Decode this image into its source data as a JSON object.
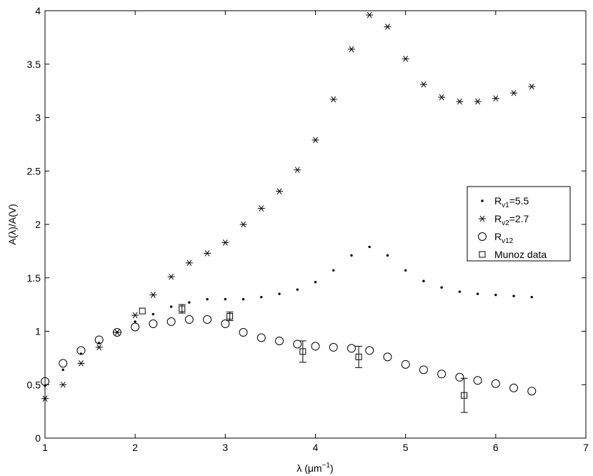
{
  "chart_data": {
    "type": "scatter",
    "title": "",
    "xlabel": "λ (μm",
    "xlabel_sup": "−1",
    "xlabel_close": ")",
    "ylabel": "A(λ)/A(V)",
    "xlim": [
      1,
      7
    ],
    "ylim": [
      0,
      4
    ],
    "xticks": [
      "1",
      "2",
      "3",
      "4",
      "5",
      "6",
      "7"
    ],
    "yticks": [
      "0",
      "0.5",
      "1",
      "1.5",
      "2",
      "2.5",
      "3",
      "3.5",
      "4"
    ],
    "grid": false,
    "legend_position": "right",
    "series": [
      {
        "name": "Rv1=5.5",
        "legend_main": "R",
        "legend_sub": "v1",
        "legend_rest": "=5.5",
        "marker": "dot",
        "x": [
          1.0,
          1.2,
          1.4,
          1.6,
          1.8,
          2.0,
          2.2,
          2.4,
          2.6,
          2.8,
          3.0,
          3.2,
          3.4,
          3.6,
          3.8,
          4.0,
          4.2,
          4.4,
          4.6,
          4.8,
          5.0,
          5.2,
          5.4,
          5.6,
          5.8,
          6.0,
          6.2,
          6.4
        ],
        "y": [
          0.49,
          0.64,
          0.79,
          0.89,
          0.99,
          1.09,
          1.16,
          1.23,
          1.27,
          1.3,
          1.3,
          1.3,
          1.32,
          1.35,
          1.39,
          1.46,
          1.57,
          1.71,
          1.79,
          1.71,
          1.57,
          1.47,
          1.41,
          1.37,
          1.35,
          1.34,
          1.33,
          1.32
        ]
      },
      {
        "name": "Rv2=2.7",
        "legend_main": "R",
        "legend_sub": "v2",
        "legend_rest": "=2.7",
        "marker": "asterisk",
        "x": [
          1.0,
          1.2,
          1.4,
          1.6,
          1.8,
          2.0,
          2.2,
          2.4,
          2.6,
          2.8,
          3.0,
          3.2,
          3.4,
          3.6,
          3.8,
          4.0,
          4.2,
          4.4,
          4.6,
          4.8,
          5.0,
          5.2,
          5.4,
          5.6,
          5.8,
          6.0,
          6.2,
          6.4
        ],
        "y": [
          0.37,
          0.5,
          0.7,
          0.85,
          0.99,
          1.15,
          1.34,
          1.51,
          1.64,
          1.73,
          1.83,
          2.0,
          2.15,
          2.31,
          2.51,
          2.79,
          3.17,
          3.64,
          3.96,
          3.85,
          3.55,
          3.31,
          3.19,
          3.15,
          3.15,
          3.18,
          3.23,
          3.29
        ]
      },
      {
        "name": "Rv12",
        "legend_main": "R",
        "legend_sub": "v12",
        "legend_rest": "",
        "marker": "circle",
        "x": [
          1.0,
          1.2,
          1.4,
          1.6,
          1.8,
          2.0,
          2.2,
          2.4,
          2.6,
          2.8,
          3.0,
          3.2,
          3.4,
          3.6,
          3.8,
          4.0,
          4.2,
          4.4,
          4.6,
          4.8,
          5.0,
          5.2,
          5.4,
          5.6,
          5.8,
          6.0,
          6.2,
          6.4
        ],
        "y": [
          0.53,
          0.7,
          0.82,
          0.92,
          0.99,
          1.04,
          1.07,
          1.09,
          1.11,
          1.11,
          1.07,
          0.99,
          0.94,
          0.91,
          0.88,
          0.86,
          0.85,
          0.84,
          0.82,
          0.76,
          0.69,
          0.64,
          0.6,
          0.57,
          0.54,
          0.51,
          0.47,
          0.44
        ]
      },
      {
        "name": "Munoz data",
        "legend_main": "Munoz data",
        "legend_sub": "",
        "legend_rest": "",
        "marker": "square",
        "x": [
          2.08,
          2.52,
          3.05,
          3.86,
          4.48,
          5.65
        ],
        "y": [
          1.19,
          1.21,
          1.14,
          0.81,
          0.76,
          0.4
        ],
        "err": [
          0,
          0.04,
          0.04,
          0.1,
          0.1,
          0.16
        ]
      }
    ]
  }
}
